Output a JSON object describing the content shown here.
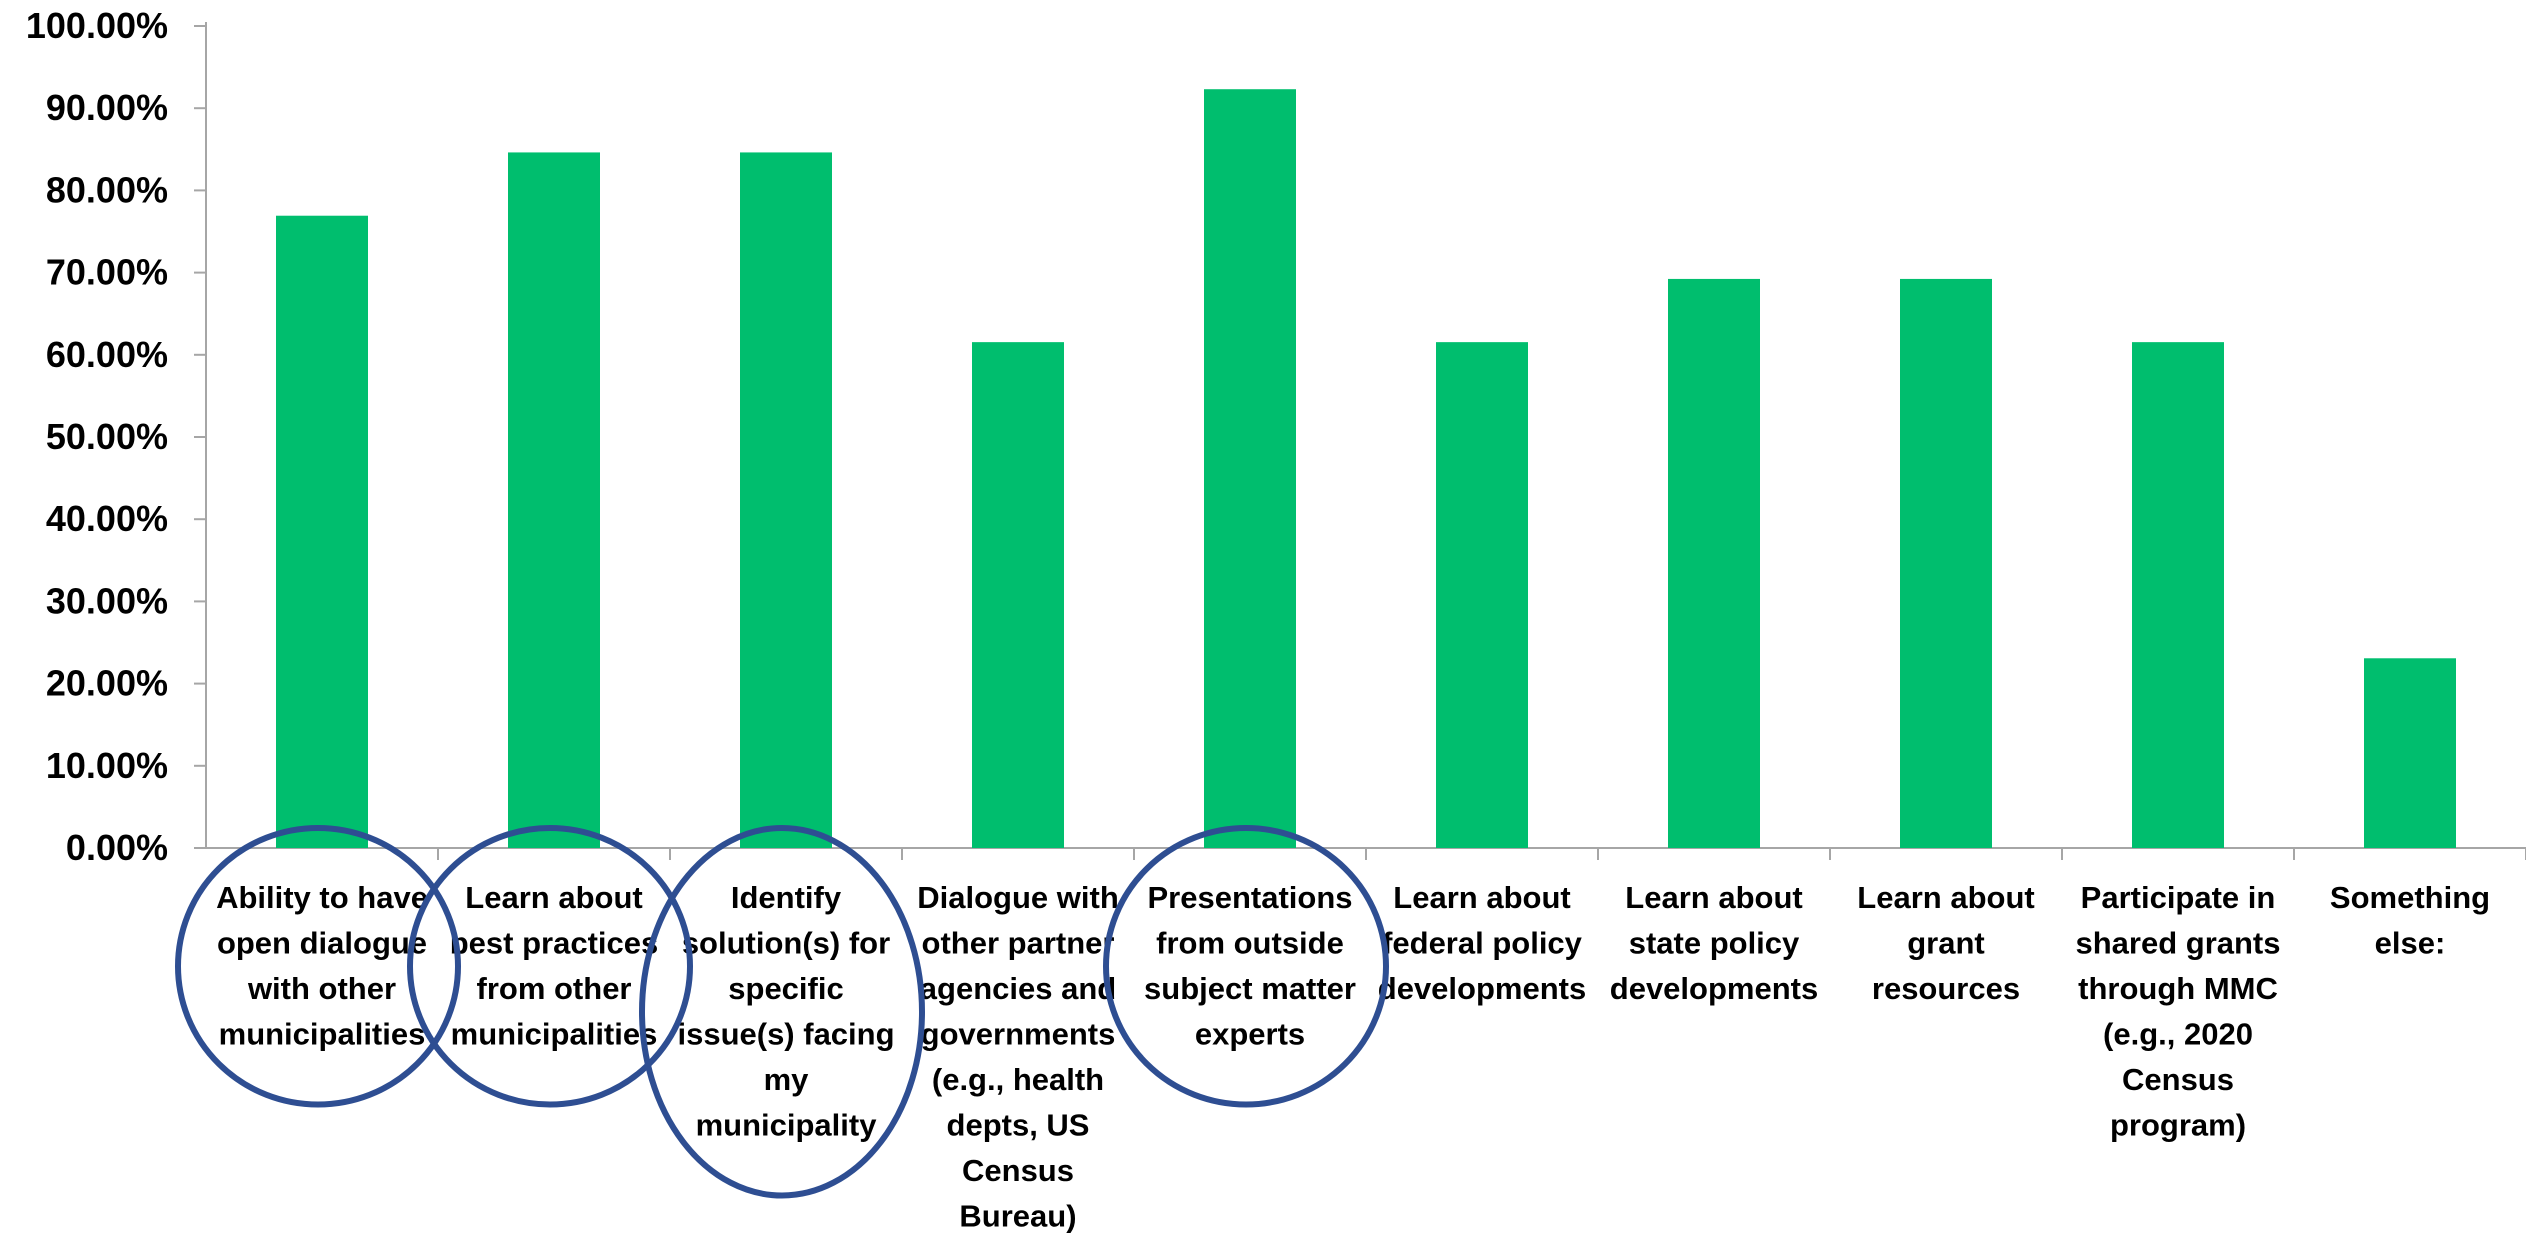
{
  "chart_data": {
    "type": "bar",
    "title": "",
    "xlabel": "",
    "ylabel": "",
    "ylim": [
      0,
      100
    ],
    "y_tick_step": 10,
    "y_tick_format": "percent_2dp",
    "grid": false,
    "legend": "none",
    "bar_color": "#00BE6E",
    "annotation_color": "#2E4E92",
    "categories": [
      [
        "Ability to have",
        "open dialogue",
        "with other",
        "municipalities"
      ],
      [
        "Learn about",
        "best practices",
        "from other",
        "municipalities"
      ],
      [
        "Identify",
        "solution(s) for",
        "specific",
        "issue(s) facing",
        "my",
        "municipality"
      ],
      [
        "Dialogue with",
        "other partner",
        "agencies and",
        "governments",
        "(e.g., health",
        "depts, US",
        "Census",
        "Bureau)"
      ],
      [
        "Presentations",
        "from outside",
        "subject matter",
        "experts"
      ],
      [
        "Learn about",
        "federal policy",
        "developments"
      ],
      [
        "Learn about",
        "state policy",
        "developments"
      ],
      [
        "Learn about",
        "grant",
        "resources"
      ],
      [
        "Participate in",
        "shared grants",
        "through MMC",
        "(e.g., 2020",
        "Census",
        "program)"
      ],
      [
        "Something",
        "else:"
      ]
    ],
    "values": [
      76.92,
      84.62,
      84.62,
      61.54,
      92.31,
      61.54,
      69.23,
      69.23,
      61.54,
      23.08
    ],
    "circled_categories": [
      0,
      1,
      2,
      4
    ]
  }
}
